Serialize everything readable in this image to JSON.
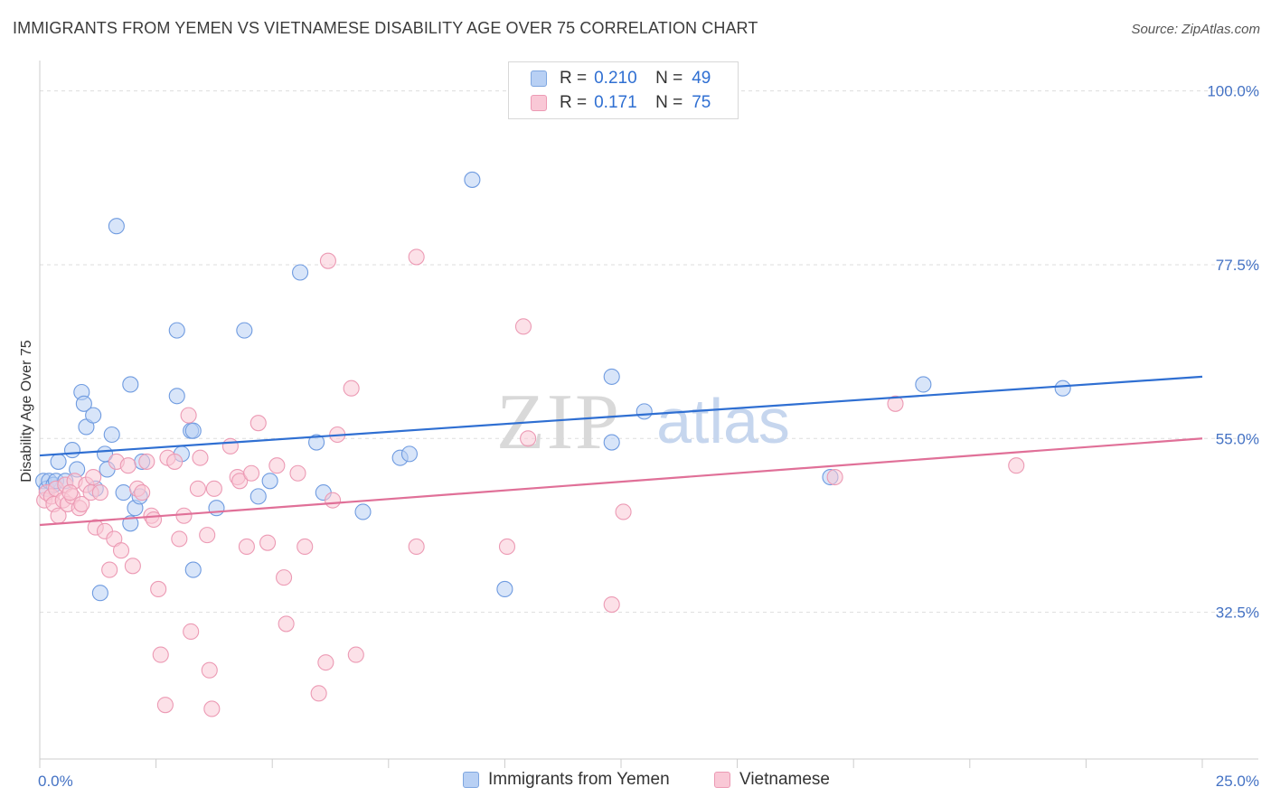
{
  "title": "IMMIGRANTS FROM YEMEN VS VIETNAMESE DISABILITY AGE OVER 75 CORRELATION CHART",
  "source": "Source: ZipAtlas.com",
  "legend": {
    "rows": [
      {
        "r_label": "R =",
        "r_value": "0.210",
        "n_label": "N =",
        "n_value": "49"
      },
      {
        "r_label": "R =",
        "r_value": "0.171",
        "n_label": "N =",
        "n_value": "75"
      }
    ]
  },
  "bottom_legend": {
    "series1": "Immigrants from Yemen",
    "series2": "Vietnamese"
  },
  "watermark": {
    "zip": "ZIP",
    "atlas": "atlas"
  },
  "colors": {
    "blue_fill": "#b8d0f4",
    "blue_stroke": "#6f9be0",
    "blue_line": "#2f6fd2",
    "pink_fill": "#f9c8d6",
    "pink_stroke": "#ec9ab4",
    "pink_line": "#e07098",
    "tick_label": "#4472c4",
    "grid": "#dddddd"
  },
  "chart_data": {
    "type": "scatter",
    "title": "IMMIGRANTS FROM YEMEN VS VIETNAMESE DISABILITY AGE OVER 75 CORRELATION CHART",
    "xlabel": "",
    "ylabel": "Disability Age Over 75",
    "xlim": [
      0,
      25
    ],
    "ylim": [
      13.5,
      103
    ],
    "x_tick_labels": [
      {
        "value": 0,
        "label": "0.0%"
      },
      {
        "value": 25,
        "label": "25.0%"
      }
    ],
    "y_tick_labels": [
      {
        "value": 100,
        "label": "100.0%"
      },
      {
        "value": 77.5,
        "label": "77.5%"
      },
      {
        "value": 55,
        "label": "55.0%"
      },
      {
        "value": 32.5,
        "label": "32.5%"
      }
    ],
    "grid": true,
    "series": [
      {
        "name": "Immigrants from Yemen",
        "color": "blue",
        "trend": {
          "x": [
            0,
            25
          ],
          "y": [
            52.8,
            63.0
          ]
        },
        "points": [
          [
            0.08,
            49.5
          ],
          [
            0.15,
            48.5
          ],
          [
            0.2,
            49.5
          ],
          [
            0.3,
            49.0
          ],
          [
            0.35,
            49.5
          ],
          [
            0.4,
            52.0
          ],
          [
            0.55,
            49.5
          ],
          [
            0.7,
            53.5
          ],
          [
            0.8,
            51.0
          ],
          [
            0.9,
            61.0
          ],
          [
            0.95,
            59.5
          ],
          [
            1.0,
            56.5
          ],
          [
            1.15,
            58.0
          ],
          [
            1.3,
            35.0
          ],
          [
            1.4,
            53.0
          ],
          [
            1.45,
            51.0
          ],
          [
            1.55,
            55.5
          ],
          [
            1.65,
            82.5
          ],
          [
            1.8,
            48.0
          ],
          [
            1.95,
            44.0
          ],
          [
            1.95,
            62.0
          ],
          [
            2.05,
            46.0
          ],
          [
            2.15,
            47.5
          ],
          [
            2.2,
            52.0
          ],
          [
            2.95,
            69.0
          ],
          [
            2.95,
            60.5
          ],
          [
            3.05,
            53.0
          ],
          [
            3.25,
            56.0
          ],
          [
            3.3,
            56.0
          ],
          [
            3.3,
            38.0
          ],
          [
            3.8,
            46.0
          ],
          [
            4.4,
            69.0
          ],
          [
            4.7,
            47.5
          ],
          [
            4.95,
            49.5
          ],
          [
            5.6,
            76.5
          ],
          [
            5.95,
            54.5
          ],
          [
            6.1,
            48.0
          ],
          [
            6.95,
            45.5
          ],
          [
            7.75,
            52.5
          ],
          [
            7.95,
            53.0
          ],
          [
            9.3,
            88.5
          ],
          [
            10.0,
            35.5
          ],
          [
            12.3,
            63.0
          ],
          [
            12.3,
            54.5
          ],
          [
            13.0,
            58.5
          ],
          [
            17.0,
            50.0
          ],
          [
            19.0,
            62.0
          ],
          [
            22.0,
            61.5
          ],
          [
            1.2,
            48.5
          ]
        ]
      },
      {
        "name": "Vietnamese",
        "color": "pink",
        "trend": {
          "x": [
            0,
            25
          ],
          "y": [
            43.8,
            55.0
          ]
        },
        "points": [
          [
            0.1,
            47.0
          ],
          [
            0.15,
            48.0
          ],
          [
            0.25,
            47.5
          ],
          [
            0.3,
            46.5
          ],
          [
            0.35,
            48.5
          ],
          [
            0.4,
            45.0
          ],
          [
            0.5,
            47.0
          ],
          [
            0.55,
            49.0
          ],
          [
            0.6,
            46.5
          ],
          [
            0.7,
            47.5
          ],
          [
            0.75,
            49.5
          ],
          [
            0.85,
            46.0
          ],
          [
            0.9,
            46.5
          ],
          [
            1.0,
            49.0
          ],
          [
            1.1,
            48.0
          ],
          [
            1.15,
            50.0
          ],
          [
            1.2,
            43.5
          ],
          [
            1.3,
            48.0
          ],
          [
            1.4,
            43.0
          ],
          [
            1.5,
            38.0
          ],
          [
            1.6,
            42.0
          ],
          [
            1.65,
            52.0
          ],
          [
            1.75,
            40.5
          ],
          [
            1.9,
            51.5
          ],
          [
            2.0,
            38.5
          ],
          [
            2.1,
            48.5
          ],
          [
            2.2,
            48.0
          ],
          [
            2.3,
            52.0
          ],
          [
            2.4,
            45.0
          ],
          [
            2.45,
            44.5
          ],
          [
            2.55,
            35.5
          ],
          [
            2.6,
            27.0
          ],
          [
            2.7,
            20.5
          ],
          [
            2.75,
            52.5
          ],
          [
            2.9,
            52.0
          ],
          [
            3.0,
            42.0
          ],
          [
            3.1,
            45.0
          ],
          [
            3.2,
            58.0
          ],
          [
            3.25,
            30.0
          ],
          [
            3.4,
            48.5
          ],
          [
            3.45,
            52.5
          ],
          [
            3.6,
            42.5
          ],
          [
            3.65,
            25.0
          ],
          [
            3.7,
            20.0
          ],
          [
            3.75,
            48.5
          ],
          [
            4.1,
            54.0
          ],
          [
            4.25,
            50.0
          ],
          [
            4.3,
            49.5
          ],
          [
            4.45,
            41.0
          ],
          [
            4.55,
            50.5
          ],
          [
            4.7,
            57.0
          ],
          [
            4.9,
            41.5
          ],
          [
            5.1,
            51.5
          ],
          [
            5.25,
            37.0
          ],
          [
            5.3,
            31.0
          ],
          [
            5.55,
            50.5
          ],
          [
            5.7,
            41.0
          ],
          [
            6.0,
            22.0
          ],
          [
            6.15,
            26.0
          ],
          [
            6.2,
            78.0
          ],
          [
            6.3,
            47.0
          ],
          [
            6.4,
            55.5
          ],
          [
            6.7,
            61.5
          ],
          [
            6.8,
            27.0
          ],
          [
            8.1,
            78.5
          ],
          [
            8.1,
            41.0
          ],
          [
            10.05,
            41.0
          ],
          [
            10.4,
            69.5
          ],
          [
            10.5,
            55.0
          ],
          [
            12.3,
            33.5
          ],
          [
            12.55,
            45.5
          ],
          [
            17.1,
            50.0
          ],
          [
            18.4,
            59.5
          ],
          [
            21.0,
            51.5
          ],
          [
            0.65,
            48.0
          ]
        ]
      }
    ]
  }
}
